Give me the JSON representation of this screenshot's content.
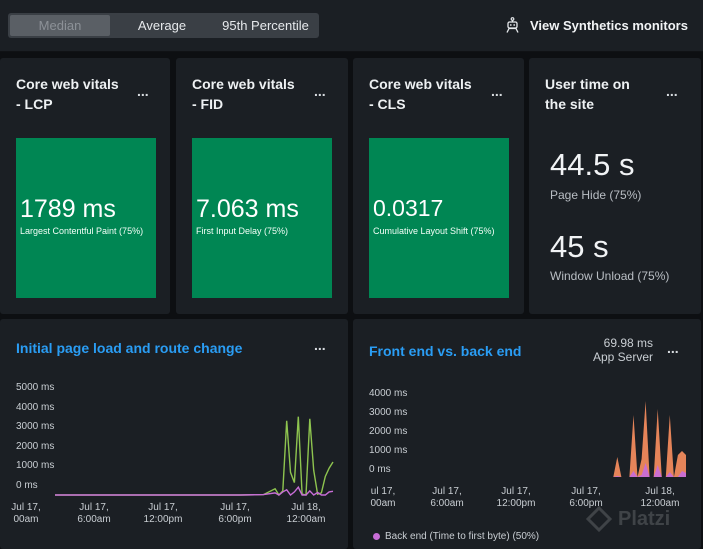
{
  "toolbar": {
    "aggregation_options": [
      "Median",
      "Average",
      "95th Percentile"
    ],
    "selected": "Median",
    "synthetics_link": "View Synthetics monitors",
    "synthetics_icon": "robot-icon"
  },
  "vitals": [
    {
      "title_1": "Core web vitals",
      "title_2": "- LCP",
      "value": "1789 ms",
      "label": "Largest Contentful Paint (75%)"
    },
    {
      "title_1": "Core web vitals",
      "title_2": "- FID",
      "value": "7.063 ms",
      "label": "First Input Delay (75%)"
    },
    {
      "title_1": "Core web vitals",
      "title_2": "- CLS",
      "value": "0.0317",
      "label": "Cumulative Layout Shift (75%)"
    }
  ],
  "user_time": {
    "title_1": "User time on",
    "title_2": "the site",
    "metrics": [
      {
        "value": "44.5 s",
        "label": "Page Hide (75%)"
      },
      {
        "value": "45 s",
        "label": "Window Unload (75%)"
      }
    ]
  },
  "menu_glyph": "...",
  "colors": {
    "vital_bg": "#008653",
    "accent_blue": "#2a9df4",
    "green_line": "#8ec44f",
    "purple_line": "#c86dd7",
    "orange_area": "#f08a5d"
  },
  "chart_data": [
    {
      "type": "line",
      "title": "Initial page load and route change",
      "y_ticks": [
        "5000 ms",
        "4000 ms",
        "3000 ms",
        "2000 ms",
        "1000 ms",
        "0 ms"
      ],
      "ylim": [
        0,
        5000
      ],
      "x_ticks": [
        {
          "line1": "Jul 17,",
          "line2": "00am"
        },
        {
          "line1": "Jul 17,",
          "line2": "6:00am"
        },
        {
          "line1": "Jul 17,",
          "line2": "12:00pm"
        },
        {
          "line1": "Jul 17,",
          "line2": "6:00pm"
        },
        {
          "line1": "Jul 18,",
          "line2": "12:00am"
        }
      ],
      "x": [
        0,
        24,
        48,
        72,
        96,
        120,
        144,
        168,
        192,
        216,
        228,
        232,
        236,
        240,
        244,
        248,
        252,
        256,
        260,
        264,
        268,
        272,
        276,
        280,
        284,
        288
      ],
      "series": [
        {
          "color": "#8ec44f",
          "values": [
            0,
            0,
            0,
            0,
            0,
            0,
            0,
            0,
            0,
            20,
            300,
            0,
            200,
            3600,
            1100,
            600,
            3800,
            50,
            0,
            3700,
            1200,
            40,
            100,
            900,
            1300,
            1600
          ]
        },
        {
          "color": "#c86dd7",
          "values": [
            0,
            0,
            0,
            0,
            0,
            0,
            0,
            0,
            0,
            20,
            100,
            0,
            150,
            250,
            0,
            150,
            380,
            0,
            0,
            200,
            0,
            120,
            0,
            0,
            150,
            180
          ]
        }
      ]
    },
    {
      "type": "area",
      "title": "Front end vs. back end",
      "aside_value": "69.98 ms",
      "aside_label": "App Server",
      "y_ticks": [
        "4000 ms",
        "3000 ms",
        "2000 ms",
        "1000 ms",
        "0 ms"
      ],
      "ylim": [
        0,
        4000
      ],
      "x_ticks": [
        {
          "line1": "ul 17,",
          "line2": "00am"
        },
        {
          "line1": "Jul 17,",
          "line2": "6:00am"
        },
        {
          "line1": "Jul 17,",
          "line2": "12:00pm"
        },
        {
          "line1": "Jul 17,",
          "line2": "6:00pm"
        },
        {
          "line1": "Jul 18,",
          "line2": "12:00am"
        }
      ],
      "x": [
        0,
        60,
        120,
        180,
        220,
        228,
        232,
        236,
        240,
        244,
        248,
        252,
        256,
        260,
        264,
        268,
        272,
        276,
        280,
        284,
        288,
        292,
        296,
        300
      ],
      "series": [
        {
          "name": "Back end (Time to first byte) (50%)",
          "color": "#c86dd7",
          "values": [
            0,
            0,
            0,
            0,
            0,
            0,
            50,
            0,
            0,
            0,
            300,
            0,
            100,
            700,
            0,
            0,
            600,
            0,
            0,
            250,
            0,
            0,
            300,
            200
          ]
        },
        {
          "color": "#f08a5d",
          "values": [
            0,
            0,
            0,
            0,
            0,
            0,
            1000,
            0,
            0,
            0,
            3100,
            0,
            900,
            3800,
            0,
            0,
            3400,
            0,
            0,
            3100,
            0,
            1100,
            1300,
            1100
          ]
        }
      ]
    }
  ],
  "watermark": "Platzi"
}
